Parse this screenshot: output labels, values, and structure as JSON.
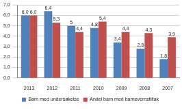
{
  "chart_data": {
    "type": "bar",
    "categories": [
      "2013",
      "2012",
      "2011",
      "2010",
      "2009",
      "2008",
      "2007"
    ],
    "series": [
      {
        "name": "Barn med undersøkelse",
        "color": "#4f81bd",
        "values": [
          6.0,
          6.4,
          5,
          4.8,
          3.4,
          2.8,
          1.8
        ],
        "value_labels": [
          "6,0",
          "6,4",
          "5",
          "4,8",
          "3,4",
          "2,8",
          "1,8"
        ]
      },
      {
        "name": "Andel barn med barnevernstiltak",
        "color": "#c0504d",
        "values": [
          6.0,
          5.3,
          4.4,
          5.4,
          4.4,
          4.3,
          3.9
        ],
        "value_labels": [
          "6,0",
          "5,3",
          "4,4",
          "5,4",
          "4,4",
          "4,3",
          "3,9"
        ]
      }
    ],
    "ylim": [
      0,
      7
    ],
    "yticks": [
      {
        "value": 0,
        "label": "0,0"
      },
      {
        "value": 1,
        "label": "1,0"
      },
      {
        "value": 2,
        "label": "2,0"
      },
      {
        "value": 3,
        "label": "3,0"
      },
      {
        "value": 4,
        "label": "4,0"
      },
      {
        "value": 5,
        "label": "5,0"
      },
      {
        "value": 6,
        "label": "6,0"
      },
      {
        "value": 7,
        "label": "7,0"
      }
    ],
    "grid": true,
    "legend": "bottom",
    "data_labels": true
  }
}
